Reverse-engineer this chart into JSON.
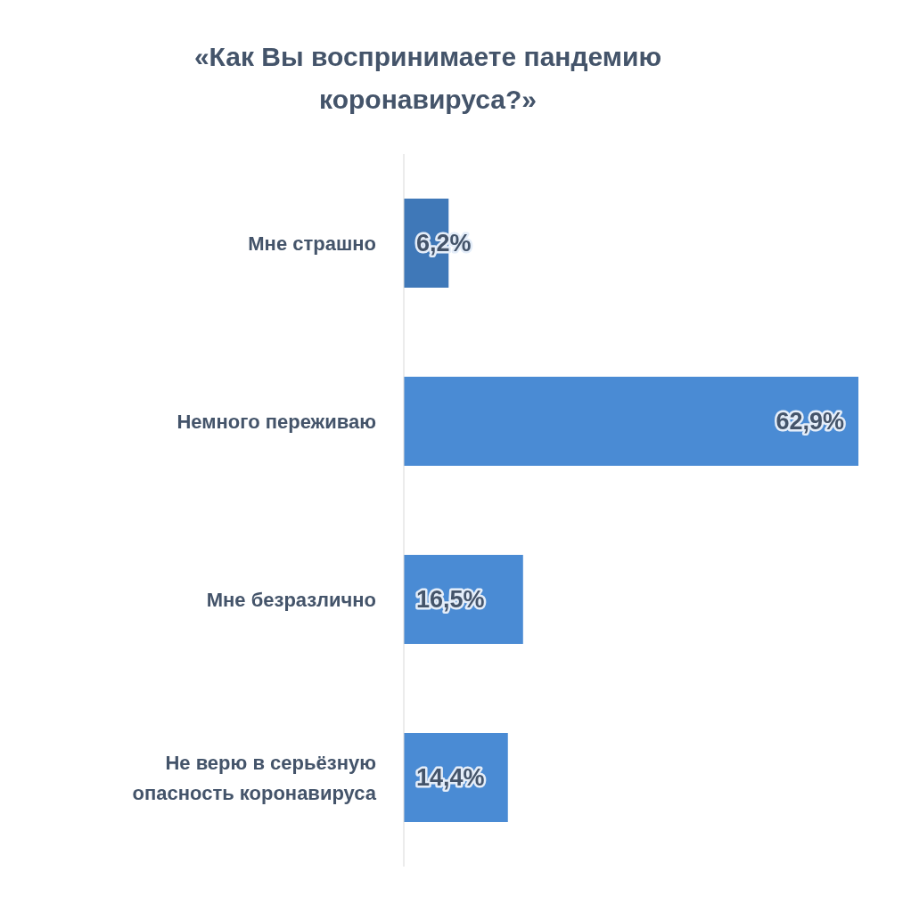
{
  "chart_data": {
    "type": "bar",
    "orientation": "horizontal",
    "title": "«Как Вы воспринимаете пандемию коронавируса?»",
    "categories": [
      "Мне страшно",
      "Немного переживаю",
      "Мне безразлично",
      "Не верю в серьёзную опасность коронавируса"
    ],
    "values": [
      6.2,
      62.9,
      16.5,
      14.4
    ],
    "colors": [
      "#3f78b8",
      "#4a8bd4",
      "#4a8bd4",
      "#4a8bd4"
    ],
    "value_labels": [
      "6,2%",
      "62,9%",
      "16,5%",
      "14,4%"
    ]
  }
}
